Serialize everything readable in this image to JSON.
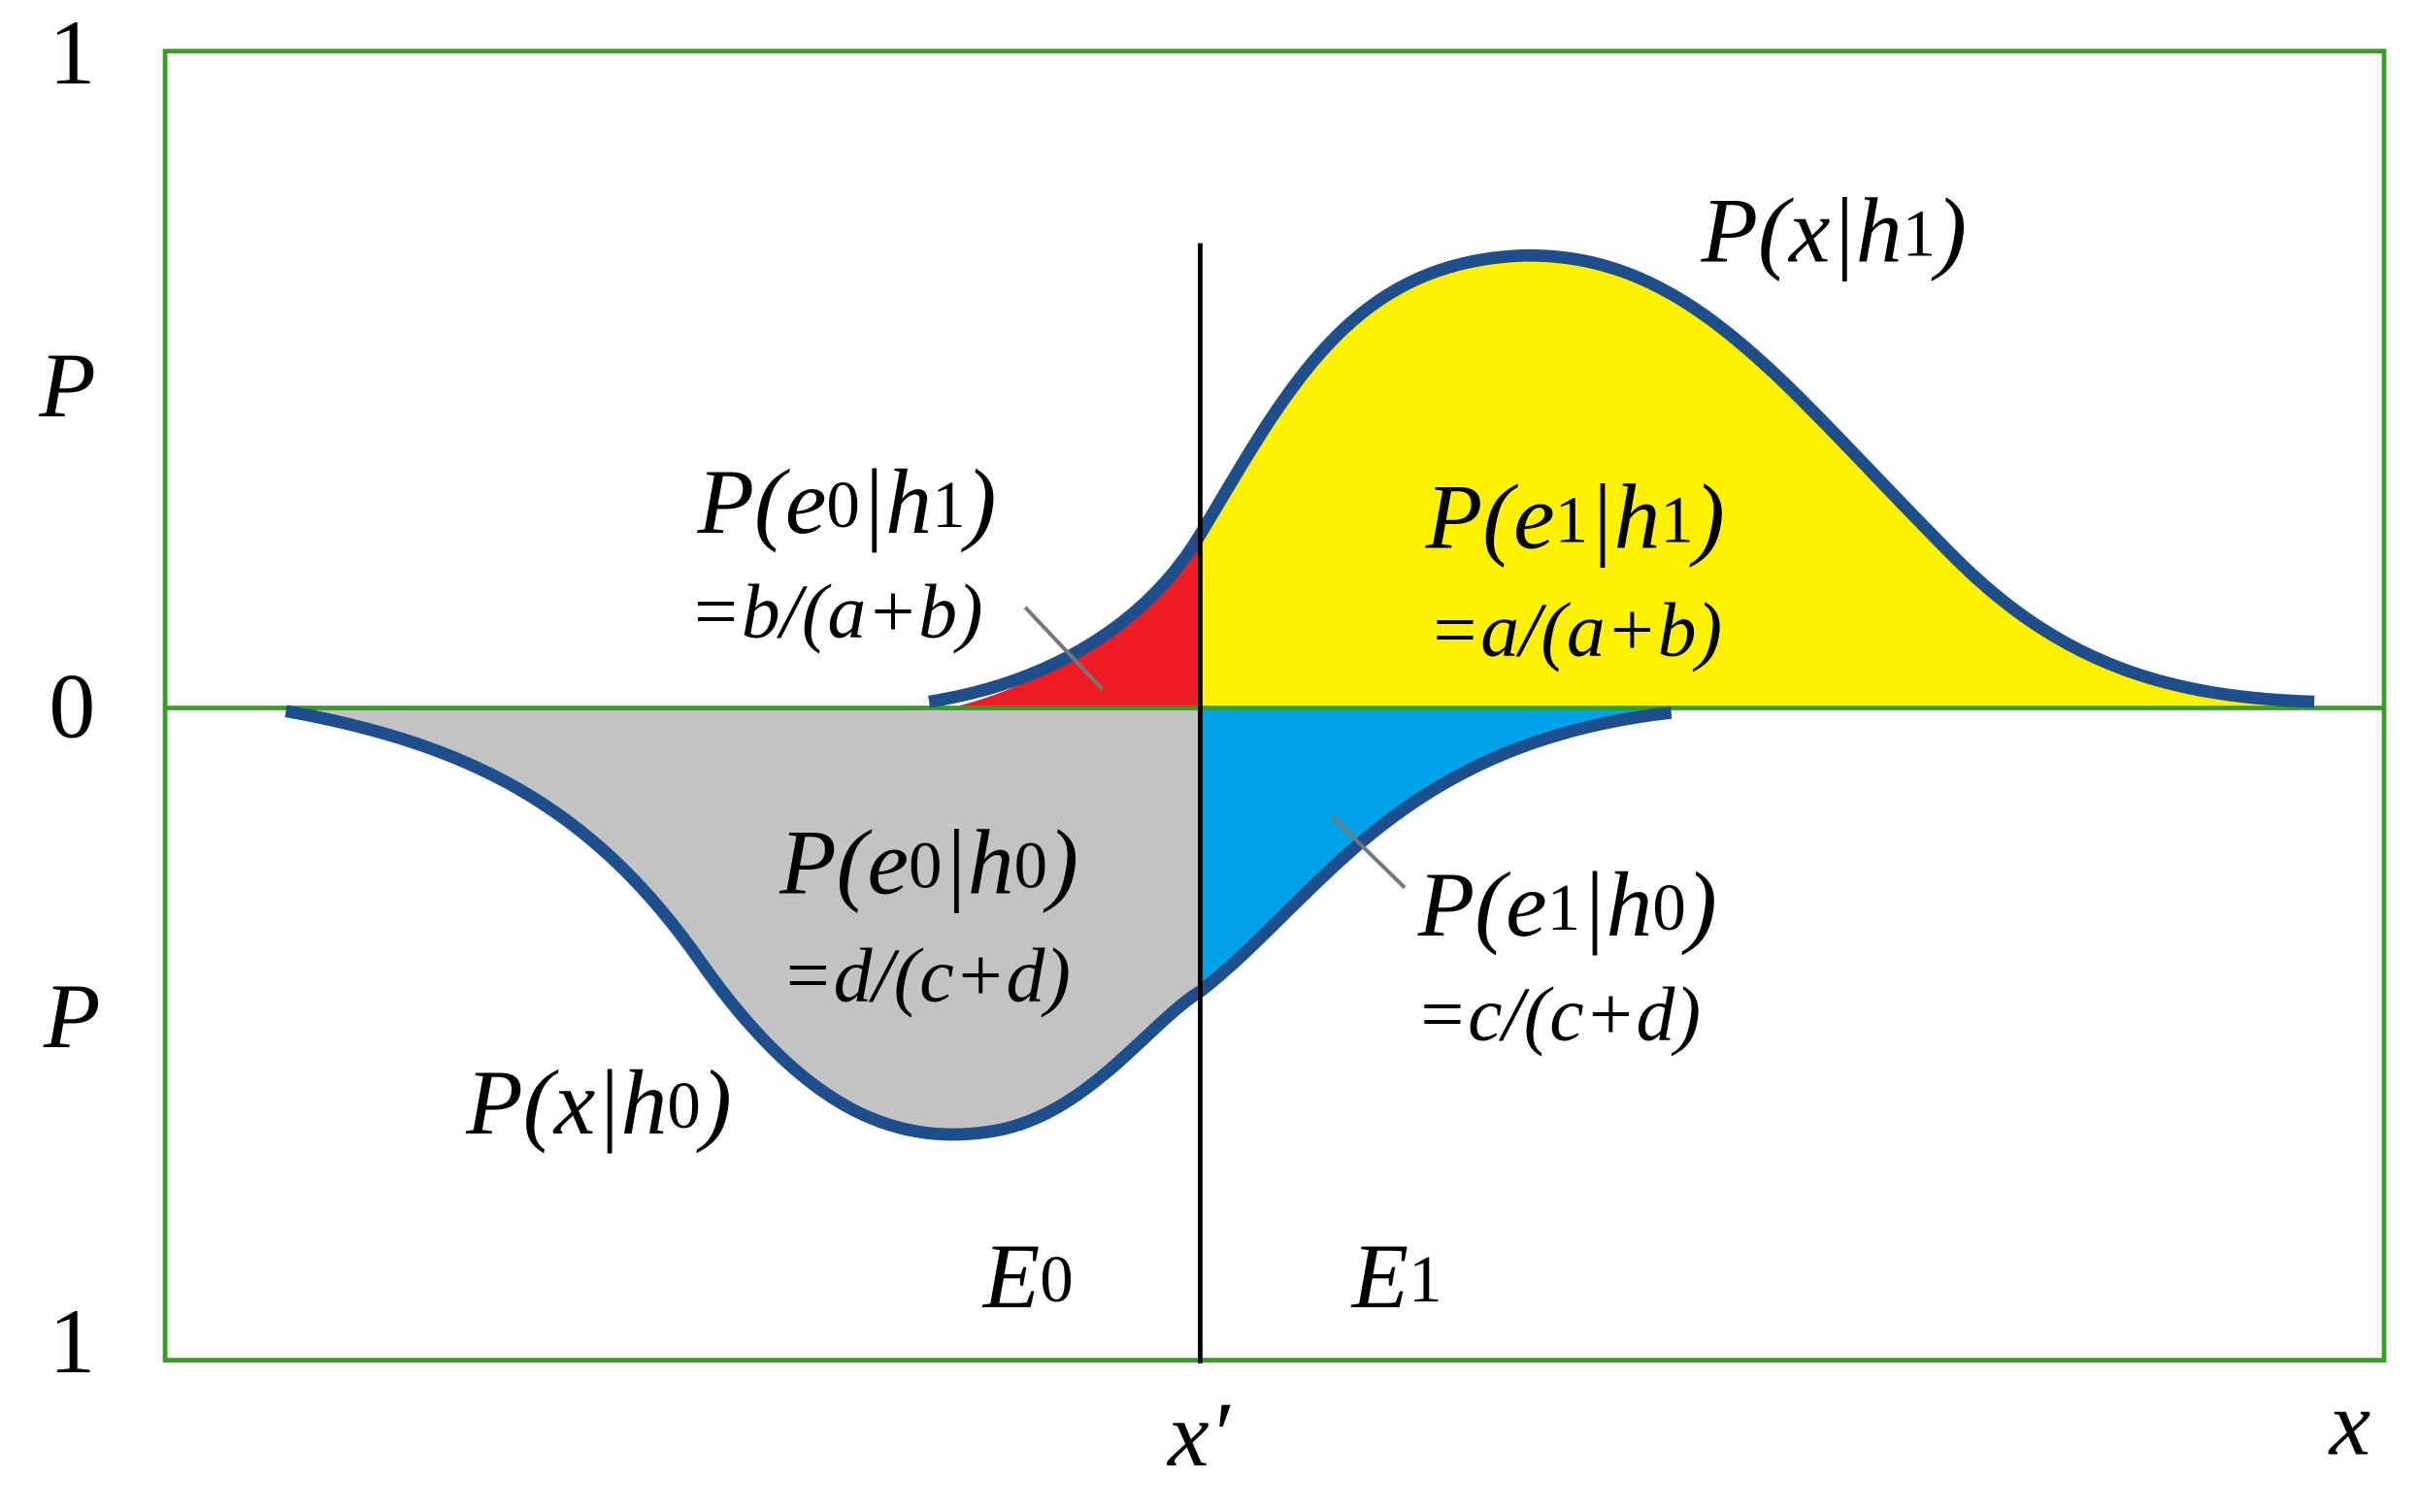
{
  "axis": {
    "top": "1",
    "upper_label": "P",
    "middle": "0",
    "lower_label": "P",
    "bottom": "1",
    "threshold": "x′",
    "x_label": "x"
  },
  "curves": {
    "h1": "P(x|h1)",
    "h0": "P(x|h0)"
  },
  "regions": [
    {
      "label": "P(e0|h1)",
      "formula": "=b/(a+b)"
    },
    {
      "label": "P(e1|h1)",
      "formula": "=a/(a+b)"
    },
    {
      "label": "P(e0|h0)",
      "formula": "=d/(c+d)"
    },
    {
      "label": "P(e1|h0)",
      "formula": "=c/(c+d)"
    }
  ],
  "zones": [
    "E0",
    "E1"
  ]
}
